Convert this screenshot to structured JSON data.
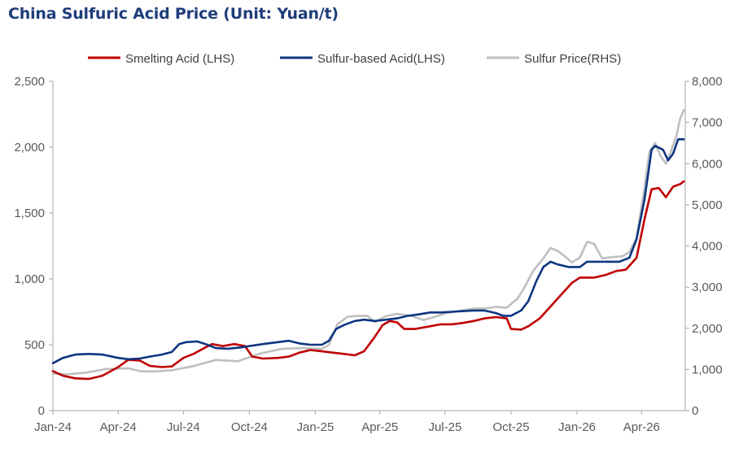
{
  "chart_data": {
    "type": "line",
    "title": "China Sulfuric Acid Price (Unit: Yuan/t)",
    "x_tick_labels": [
      "Jan-24",
      "Apr-24",
      "Jul-24",
      "Oct-24",
      "Jan-25",
      "Apr-25",
      "Jul-25",
      "Oct-25",
      "Jan-26",
      "Apr-26"
    ],
    "y_left": {
      "ticks": [
        "0",
        "500",
        "1,000",
        "1,500",
        "2,000",
        "2,500"
      ],
      "range": [
        0,
        2500
      ]
    },
    "y_right": {
      "ticks": [
        "0",
        "1,000",
        "2,000",
        "3,000",
        "4,000",
        "5,000",
        "6,000",
        "7,000",
        "8,000"
      ],
      "range": [
        0,
        8000
      ]
    },
    "legend_position": "top",
    "grid": false,
    "series": [
      {
        "name": "Smelting Acid (LHS)",
        "axis": "left",
        "color": "#c00000",
        "points": [
          [
            "2024-01-01",
            300
          ],
          [
            "2024-01-15",
            265
          ],
          [
            "2024-02-01",
            245
          ],
          [
            "2024-02-20",
            240
          ],
          [
            "2024-03-10",
            265
          ],
          [
            "2024-04-01",
            330
          ],
          [
            "2024-04-15",
            385
          ],
          [
            "2024-05-01",
            380
          ],
          [
            "2024-05-15",
            340
          ],
          [
            "2024-06-01",
            330
          ],
          [
            "2024-06-15",
            335
          ],
          [
            "2024-07-01",
            400
          ],
          [
            "2024-07-15",
            430
          ],
          [
            "2024-08-01",
            480
          ],
          [
            "2024-08-10",
            505
          ],
          [
            "2024-08-25",
            490
          ],
          [
            "2024-09-10",
            505
          ],
          [
            "2024-09-25",
            490
          ],
          [
            "2024-10-05",
            410
          ],
          [
            "2024-10-20",
            395
          ],
          [
            "2024-11-10",
            400
          ],
          [
            "2024-11-25",
            410
          ],
          [
            "2024-12-10",
            440
          ],
          [
            "2024-12-25",
            460
          ],
          [
            "2025-01-10",
            450
          ],
          [
            "2025-01-25",
            440
          ],
          [
            "2025-02-10",
            430
          ],
          [
            "2025-02-25",
            420
          ],
          [
            "2025-03-10",
            450
          ],
          [
            "2025-03-25",
            560
          ],
          [
            "2025-04-05",
            650
          ],
          [
            "2025-04-15",
            680
          ],
          [
            "2025-04-25",
            670
          ],
          [
            "2025-05-05",
            620
          ],
          [
            "2025-05-20",
            620
          ],
          [
            "2025-06-10",
            640
          ],
          [
            "2025-06-25",
            655
          ],
          [
            "2025-07-10",
            655
          ],
          [
            "2025-07-25",
            665
          ],
          [
            "2025-08-10",
            680
          ],
          [
            "2025-08-25",
            700
          ],
          [
            "2025-09-10",
            710
          ],
          [
            "2025-09-25",
            700
          ],
          [
            "2025-10-01",
            620
          ],
          [
            "2025-10-15",
            615
          ],
          [
            "2025-10-25",
            640
          ],
          [
            "2025-11-10",
            700
          ],
          [
            "2025-11-25",
            790
          ],
          [
            "2025-12-10",
            880
          ],
          [
            "2025-12-25",
            970
          ],
          [
            "2026-01-05",
            1010
          ],
          [
            "2026-01-25",
            1010
          ],
          [
            "2026-02-10",
            1030
          ],
          [
            "2026-02-25",
            1060
          ],
          [
            "2026-03-10",
            1070
          ],
          [
            "2026-03-25",
            1160
          ],
          [
            "2026-04-05",
            1450
          ],
          [
            "2026-04-15",
            1680
          ],
          [
            "2026-04-25",
            1690
          ],
          [
            "2026-05-05",
            1620
          ],
          [
            "2026-05-15",
            1700
          ],
          [
            "2026-05-25",
            1720
          ],
          [
            "2026-05-30",
            1740
          ]
        ]
      },
      {
        "name": "Sulfur-based Acid(LHS)",
        "axis": "left",
        "color": "#0d3580",
        "points": [
          [
            "2024-01-01",
            360
          ],
          [
            "2024-01-15",
            400
          ],
          [
            "2024-02-01",
            425
          ],
          [
            "2024-02-20",
            430
          ],
          [
            "2024-03-10",
            425
          ],
          [
            "2024-04-01",
            400
          ],
          [
            "2024-04-15",
            390
          ],
          [
            "2024-05-01",
            395
          ],
          [
            "2024-05-15",
            410
          ],
          [
            "2024-06-01",
            425
          ],
          [
            "2024-06-15",
            445
          ],
          [
            "2024-06-25",
            505
          ],
          [
            "2024-07-05",
            520
          ],
          [
            "2024-07-20",
            525
          ],
          [
            "2024-08-01",
            505
          ],
          [
            "2024-08-15",
            475
          ],
          [
            "2024-09-01",
            470
          ],
          [
            "2024-09-20",
            480
          ],
          [
            "2024-10-01",
            490
          ],
          [
            "2024-10-20",
            505
          ],
          [
            "2024-11-10",
            520
          ],
          [
            "2024-11-25",
            530
          ],
          [
            "2024-12-10",
            510
          ],
          [
            "2024-12-25",
            500
          ],
          [
            "2025-01-10",
            500
          ],
          [
            "2025-01-20",
            530
          ],
          [
            "2025-01-30",
            620
          ],
          [
            "2025-02-10",
            650
          ],
          [
            "2025-02-25",
            680
          ],
          [
            "2025-03-10",
            690
          ],
          [
            "2025-03-25",
            680
          ],
          [
            "2025-04-10",
            690
          ],
          [
            "2025-04-25",
            700
          ],
          [
            "2025-05-10",
            720
          ],
          [
            "2025-05-25",
            730
          ],
          [
            "2025-06-10",
            745
          ],
          [
            "2025-06-25",
            745
          ],
          [
            "2025-07-10",
            750
          ],
          [
            "2025-07-25",
            755
          ],
          [
            "2025-08-10",
            760
          ],
          [
            "2025-08-25",
            760
          ],
          [
            "2025-09-10",
            740
          ],
          [
            "2025-09-20",
            720
          ],
          [
            "2025-10-01",
            720
          ],
          [
            "2025-10-15",
            760
          ],
          [
            "2025-10-25",
            830
          ],
          [
            "2025-11-05",
            980
          ],
          [
            "2025-11-15",
            1090
          ],
          [
            "2025-11-25",
            1130
          ],
          [
            "2025-12-05",
            1110
          ],
          [
            "2025-12-20",
            1090
          ],
          [
            "2026-01-05",
            1090
          ],
          [
            "2026-01-15",
            1130
          ],
          [
            "2026-01-30",
            1130
          ],
          [
            "2026-02-15",
            1130
          ],
          [
            "2026-03-01",
            1130
          ],
          [
            "2026-03-15",
            1160
          ],
          [
            "2026-03-25",
            1300
          ],
          [
            "2026-04-05",
            1600
          ],
          [
            "2026-04-15",
            1980
          ],
          [
            "2026-04-20",
            2010
          ],
          [
            "2026-05-01",
            1980
          ],
          [
            "2026-05-08",
            1900
          ],
          [
            "2026-05-15",
            1950
          ],
          [
            "2026-05-22",
            2060
          ],
          [
            "2026-05-30",
            2060
          ]
        ]
      },
      {
        "name": "Sulfur Price(RHS)",
        "axis": "right",
        "color": "#bfbfbf",
        "points": [
          [
            "2024-01-01",
            900
          ],
          [
            "2024-01-20",
            880
          ],
          [
            "2024-02-15",
            920
          ],
          [
            "2024-03-15",
            1010
          ],
          [
            "2024-04-15",
            1030
          ],
          [
            "2024-05-01",
            960
          ],
          [
            "2024-05-20",
            950
          ],
          [
            "2024-06-15",
            980
          ],
          [
            "2024-07-15",
            1080
          ],
          [
            "2024-08-15",
            1230
          ],
          [
            "2024-09-15",
            1200
          ],
          [
            "2024-10-15",
            1380
          ],
          [
            "2024-11-15",
            1500
          ],
          [
            "2024-12-15",
            1520
          ],
          [
            "2025-01-10",
            1500
          ],
          [
            "2025-01-20",
            1600
          ],
          [
            "2025-02-01",
            2100
          ],
          [
            "2025-02-15",
            2280
          ],
          [
            "2025-03-01",
            2300
          ],
          [
            "2025-03-15",
            2300
          ],
          [
            "2025-03-25",
            2150
          ],
          [
            "2025-04-10",
            2300
          ],
          [
            "2025-04-25",
            2350
          ],
          [
            "2025-05-15",
            2300
          ],
          [
            "2025-06-01",
            2200
          ],
          [
            "2025-06-15",
            2270
          ],
          [
            "2025-07-01",
            2360
          ],
          [
            "2025-07-20",
            2420
          ],
          [
            "2025-08-10",
            2480
          ],
          [
            "2025-08-25",
            2480
          ],
          [
            "2025-09-10",
            2520
          ],
          [
            "2025-09-25",
            2500
          ],
          [
            "2025-10-10",
            2720
          ],
          [
            "2025-10-20",
            3000
          ],
          [
            "2025-11-01",
            3400
          ],
          [
            "2025-11-15",
            3700
          ],
          [
            "2025-11-25",
            3950
          ],
          [
            "2025-12-05",
            3880
          ],
          [
            "2025-12-15",
            3750
          ],
          [
            "2025-12-25",
            3600
          ],
          [
            "2026-01-05",
            3720
          ],
          [
            "2026-01-15",
            4100
          ],
          [
            "2026-01-25",
            4050
          ],
          [
            "2026-02-05",
            3700
          ],
          [
            "2026-02-20",
            3730
          ],
          [
            "2026-03-05",
            3750
          ],
          [
            "2026-03-15",
            3850
          ],
          [
            "2026-03-25",
            4200
          ],
          [
            "2026-04-05",
            5400
          ],
          [
            "2026-04-12",
            6300
          ],
          [
            "2026-04-20",
            6500
          ],
          [
            "2026-04-27",
            6200
          ],
          [
            "2026-05-05",
            6000
          ],
          [
            "2026-05-12",
            6300
          ],
          [
            "2026-05-20",
            6700
          ],
          [
            "2026-05-25",
            7100
          ],
          [
            "2026-05-30",
            7300
          ]
        ]
      }
    ]
  }
}
